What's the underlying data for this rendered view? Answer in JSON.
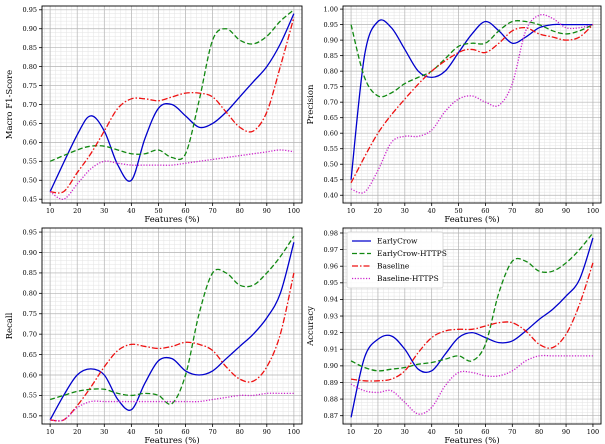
{
  "chart_data": [
    {
      "type": "line",
      "xlabel": "Features (%)",
      "ylabel": "Macro F1-Score",
      "xlim": [
        7,
        103
      ],
      "ylim": [
        0.44,
        0.96
      ],
      "xticks": [
        10,
        20,
        30,
        40,
        50,
        60,
        70,
        80,
        90,
        100
      ],
      "yticks": [
        0.45,
        0.5,
        0.55,
        0.6,
        0.65,
        0.7,
        0.75,
        0.8,
        0.85,
        0.9,
        0.95
      ],
      "grid": true,
      "series": [
        {
          "name": "EarlyCrow",
          "x": [
            10,
            20,
            25,
            30,
            35,
            40,
            45,
            50,
            55,
            60,
            65,
            70,
            75,
            80,
            85,
            90,
            95,
            100
          ],
          "values": [
            0.47,
            0.62,
            0.67,
            0.63,
            0.54,
            0.5,
            0.61,
            0.69,
            0.7,
            0.67,
            0.64,
            0.65,
            0.68,
            0.72,
            0.76,
            0.8,
            0.86,
            0.94
          ]
        },
        {
          "name": "EarlyCrow-HTTPS",
          "x": [
            10,
            20,
            25,
            30,
            35,
            40,
            45,
            50,
            55,
            60,
            65,
            70,
            75,
            80,
            85,
            90,
            95,
            100
          ],
          "values": [
            0.55,
            0.58,
            0.59,
            0.59,
            0.58,
            0.57,
            0.57,
            0.58,
            0.56,
            0.57,
            0.71,
            0.87,
            0.9,
            0.87,
            0.86,
            0.88,
            0.92,
            0.95
          ]
        },
        {
          "name": "Baseline",
          "x": [
            10,
            15,
            20,
            25,
            30,
            35,
            40,
            45,
            50,
            55,
            60,
            65,
            70,
            75,
            80,
            85,
            90,
            95,
            100
          ],
          "values": [
            0.47,
            0.47,
            0.52,
            0.57,
            0.63,
            0.69,
            0.715,
            0.715,
            0.71,
            0.72,
            0.73,
            0.73,
            0.72,
            0.68,
            0.64,
            0.63,
            0.68,
            0.8,
            0.93
          ]
        },
        {
          "name": "Baseline-HTTPS",
          "x": [
            10,
            15,
            20,
            25,
            30,
            35,
            40,
            45,
            50,
            55,
            60,
            65,
            70,
            75,
            80,
            85,
            90,
            95,
            100
          ],
          "values": [
            0.47,
            0.45,
            0.49,
            0.53,
            0.55,
            0.545,
            0.54,
            0.54,
            0.54,
            0.54,
            0.545,
            0.55,
            0.555,
            0.56,
            0.565,
            0.57,
            0.575,
            0.58,
            0.575
          ]
        }
      ]
    },
    {
      "type": "line",
      "xlabel": "Features (%)",
      "ylabel": "Precision",
      "xlim": [
        7,
        103
      ],
      "ylim": [
        0.375,
        1.01
      ],
      "xticks": [
        10,
        20,
        30,
        40,
        50,
        60,
        70,
        80,
        90,
        100
      ],
      "yticks": [
        0.4,
        0.45,
        0.5,
        0.55,
        0.6,
        0.65,
        0.7,
        0.75,
        0.8,
        0.85,
        0.9,
        0.95,
        1.0
      ],
      "grid": true,
      "series": [
        {
          "name": "EarlyCrow",
          "x": [
            10,
            15,
            20,
            25,
            30,
            35,
            40,
            45,
            50,
            55,
            60,
            65,
            70,
            75,
            80,
            85,
            90,
            95,
            100
          ],
          "values": [
            0.45,
            0.85,
            0.96,
            0.94,
            0.87,
            0.8,
            0.78,
            0.8,
            0.86,
            0.92,
            0.96,
            0.93,
            0.89,
            0.91,
            0.94,
            0.95,
            0.95,
            0.95,
            0.95
          ]
        },
        {
          "name": "EarlyCrow-HTTPS",
          "x": [
            10,
            15,
            20,
            25,
            30,
            35,
            40,
            45,
            50,
            55,
            60,
            65,
            70,
            75,
            80,
            85,
            90,
            95,
            100
          ],
          "values": [
            0.95,
            0.78,
            0.72,
            0.73,
            0.76,
            0.78,
            0.8,
            0.84,
            0.88,
            0.89,
            0.89,
            0.93,
            0.96,
            0.96,
            0.95,
            0.93,
            0.92,
            0.93,
            0.95
          ]
        },
        {
          "name": "Baseline",
          "x": [
            10,
            20,
            30,
            40,
            50,
            55,
            60,
            65,
            70,
            75,
            80,
            85,
            90,
            95,
            100
          ],
          "values": [
            0.44,
            0.6,
            0.71,
            0.8,
            0.86,
            0.87,
            0.86,
            0.89,
            0.93,
            0.94,
            0.92,
            0.91,
            0.9,
            0.91,
            0.95
          ]
        },
        {
          "name": "Baseline-HTTPS",
          "x": [
            10,
            15,
            20,
            25,
            30,
            35,
            40,
            45,
            50,
            55,
            60,
            65,
            70,
            75,
            80,
            85,
            90,
            95,
            100
          ],
          "values": [
            0.42,
            0.41,
            0.48,
            0.57,
            0.59,
            0.59,
            0.61,
            0.67,
            0.71,
            0.72,
            0.7,
            0.69,
            0.76,
            0.93,
            0.98,
            0.97,
            0.94,
            0.94,
            0.95
          ]
        }
      ]
    },
    {
      "type": "line",
      "xlabel": "Features (%)",
      "ylabel": "Recall",
      "xlim": [
        7,
        103
      ],
      "ylim": [
        0.48,
        0.96
      ],
      "xticks": [
        10,
        20,
        30,
        40,
        50,
        60,
        70,
        80,
        90,
        100
      ],
      "yticks": [
        0.5,
        0.55,
        0.6,
        0.65,
        0.7,
        0.75,
        0.8,
        0.85,
        0.9,
        0.95
      ],
      "grid": true,
      "series": [
        {
          "name": "EarlyCrow",
          "x": [
            10,
            15,
            20,
            25,
            30,
            35,
            40,
            45,
            50,
            55,
            60,
            65,
            70,
            75,
            80,
            85,
            90,
            95,
            100
          ],
          "values": [
            0.49,
            0.55,
            0.6,
            0.615,
            0.6,
            0.54,
            0.515,
            0.58,
            0.635,
            0.64,
            0.61,
            0.6,
            0.61,
            0.64,
            0.67,
            0.7,
            0.74,
            0.8,
            0.925
          ]
        },
        {
          "name": "EarlyCrow-HTTPS",
          "x": [
            10,
            15,
            20,
            25,
            30,
            35,
            40,
            45,
            50,
            55,
            60,
            65,
            70,
            75,
            80,
            85,
            90,
            95,
            100
          ],
          "values": [
            0.54,
            0.55,
            0.56,
            0.565,
            0.565,
            0.555,
            0.55,
            0.555,
            0.55,
            0.53,
            0.6,
            0.75,
            0.85,
            0.85,
            0.82,
            0.82,
            0.85,
            0.89,
            0.94
          ]
        },
        {
          "name": "Baseline",
          "x": [
            10,
            15,
            20,
            25,
            30,
            35,
            40,
            45,
            50,
            55,
            60,
            65,
            70,
            75,
            80,
            85,
            90,
            95,
            100
          ],
          "values": [
            0.49,
            0.49,
            0.525,
            0.57,
            0.62,
            0.66,
            0.675,
            0.67,
            0.665,
            0.67,
            0.68,
            0.675,
            0.66,
            0.62,
            0.59,
            0.585,
            0.62,
            0.7,
            0.85
          ]
        },
        {
          "name": "Baseline-HTTPS",
          "x": [
            10,
            15,
            20,
            25,
            30,
            35,
            40,
            45,
            50,
            55,
            60,
            65,
            70,
            75,
            80,
            85,
            90,
            95,
            100
          ],
          "values": [
            0.49,
            0.49,
            0.52,
            0.535,
            0.535,
            0.535,
            0.535,
            0.535,
            0.535,
            0.535,
            0.535,
            0.535,
            0.54,
            0.545,
            0.55,
            0.55,
            0.555,
            0.555,
            0.555
          ]
        }
      ]
    },
    {
      "type": "line",
      "xlabel": "Features (%)",
      "ylabel": "Accuracy",
      "xlim": [
        7,
        103
      ],
      "ylim": [
        0.865,
        0.983
      ],
      "xticks": [
        10,
        20,
        30,
        40,
        50,
        60,
        70,
        80,
        90,
        100
      ],
      "yticks": [
        0.87,
        0.88,
        0.89,
        0.9,
        0.91,
        0.92,
        0.93,
        0.94,
        0.95,
        0.96,
        0.97,
        0.98
      ],
      "grid": true,
      "legend_position": "top-left",
      "series": [
        {
          "name": "EarlyCrow",
          "x": [
            10,
            15,
            20,
            25,
            30,
            35,
            40,
            45,
            50,
            55,
            60,
            65,
            70,
            75,
            80,
            85,
            90,
            95,
            100
          ],
          "values": [
            0.869,
            0.905,
            0.916,
            0.918,
            0.91,
            0.898,
            0.897,
            0.907,
            0.917,
            0.92,
            0.917,
            0.914,
            0.915,
            0.921,
            0.928,
            0.934,
            0.942,
            0.952,
            0.977
          ]
        },
        {
          "name": "EarlyCrow-HTTPS",
          "x": [
            10,
            15,
            20,
            25,
            30,
            35,
            40,
            45,
            50,
            55,
            60,
            65,
            70,
            75,
            80,
            85,
            90,
            95,
            100
          ],
          "values": [
            0.903,
            0.899,
            0.897,
            0.898,
            0.899,
            0.901,
            0.902,
            0.904,
            0.906,
            0.903,
            0.913,
            0.944,
            0.963,
            0.963,
            0.957,
            0.957,
            0.962,
            0.97,
            0.98
          ]
        },
        {
          "name": "Baseline",
          "x": [
            10,
            15,
            20,
            25,
            30,
            35,
            40,
            45,
            50,
            55,
            60,
            65,
            70,
            75,
            80,
            85,
            90,
            95,
            100
          ],
          "values": [
            0.892,
            0.891,
            0.891,
            0.892,
            0.897,
            0.908,
            0.917,
            0.921,
            0.922,
            0.922,
            0.924,
            0.926,
            0.926,
            0.921,
            0.913,
            0.911,
            0.919,
            0.937,
            0.962
          ]
        },
        {
          "name": "Baseline-HTTPS",
          "x": [
            10,
            15,
            20,
            25,
            30,
            35,
            40,
            45,
            50,
            55,
            60,
            65,
            70,
            75,
            80,
            85,
            90,
            95,
            100
          ],
          "values": [
            0.889,
            0.885,
            0.884,
            0.885,
            0.878,
            0.871,
            0.875,
            0.888,
            0.896,
            0.896,
            0.894,
            0.894,
            0.897,
            0.903,
            0.906,
            0.906,
            0.906,
            0.906,
            0.906
          ]
        }
      ]
    }
  ],
  "legend": {
    "entries": [
      "EarlyCrow",
      "EarlyCrow-HTTPS",
      "Baseline",
      "Baseline-HTTPS"
    ]
  },
  "styles": {
    "EarlyCrow": {
      "color": "#0000cc",
      "dash": ""
    },
    "EarlyCrow-HTTPS": {
      "color": "#118811",
      "dash": "5,2.5"
    },
    "Baseline": {
      "color": "#ee1111",
      "dash": "6,2,1.5,2"
    },
    "Baseline-HTTPS": {
      "color": "#cc22cc",
      "dash": "1.2,1.6"
    }
  }
}
